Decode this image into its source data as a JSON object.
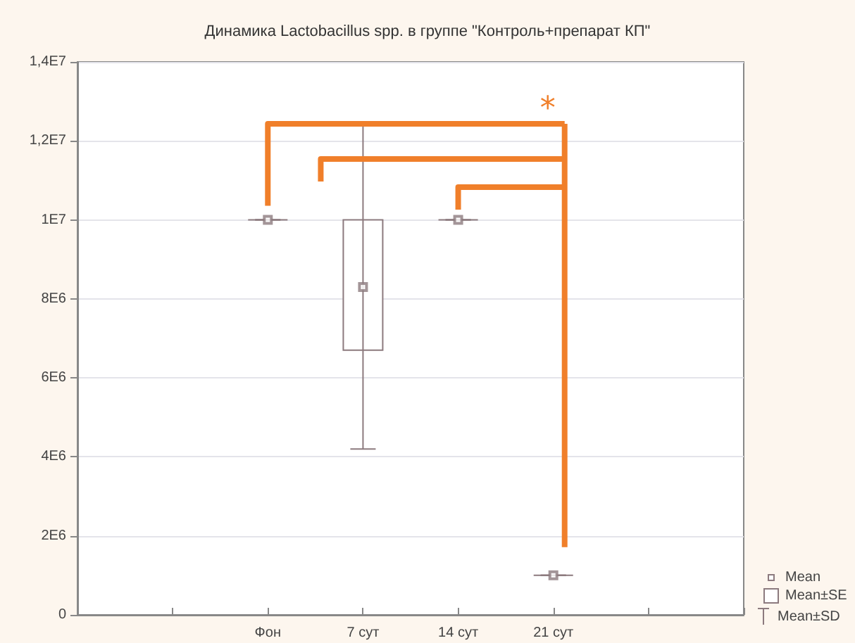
{
  "chart_data": {
    "type": "scatter",
    "title": "Динамика Lactobacillus spp. в группе \"Контроль+препарат КП\"",
    "categories": [
      null,
      null,
      "Фон",
      "7 сут",
      "14 сут",
      "21 сут",
      null,
      null
    ],
    "series": [
      {
        "name": "Mean",
        "marker": "square",
        "color": "#8c7a7e",
        "values": [
          null,
          null,
          10000000,
          8300000,
          10000000,
          1000000,
          null,
          null
        ],
        "errors": [
          null,
          null,
          [
            10000000,
            10000000
          ],
          [
            4200000,
            12450000
          ],
          [
            10000000,
            10000000
          ],
          [
            1000000,
            1000000
          ],
          null,
          null
        ]
      },
      {
        "name": "Mean±SE",
        "type": "bar",
        "color": "#8c7a7e",
        "base": [
          null,
          null,
          10000000,
          6700000,
          10000000,
          1000000,
          null,
          null
        ],
        "values": [
          null,
          null,
          0,
          3300000,
          0,
          0,
          null,
          null
        ]
      }
    ],
    "ylim": [
      0,
      14000000
    ],
    "yticks": [
      {
        "value": 0,
        "label": "0"
      },
      {
        "value": 2000000,
        "label": "2E6"
      },
      {
        "value": 4000000,
        "label": "4E6"
      },
      {
        "value": 6000000,
        "label": "6E6"
      },
      {
        "value": 8000000,
        "label": "8E6"
      },
      {
        "value": 10000000,
        "label": "1E7"
      },
      {
        "value": 12000000,
        "label": "1,2E7"
      },
      {
        "value": 14000000,
        "label": "1,4E7"
      }
    ],
    "grid": "y",
    "legend": "bottom right",
    "annotations": [
      "*",
      "Mean±SD"
    ]
  }
}
